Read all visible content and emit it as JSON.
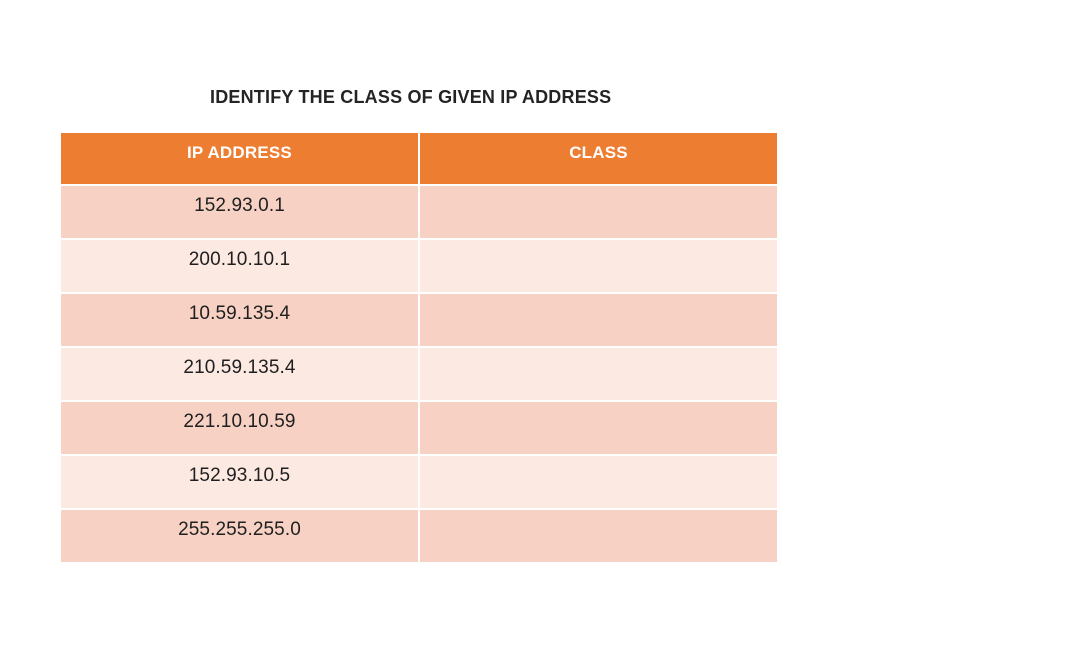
{
  "title": "IDENTIFY THE CLASS OF GIVEN IP ADDRESS",
  "table": {
    "columns": [
      "IP ADDRESS",
      "CLASS"
    ],
    "rows": [
      {
        "ip": "152.93.0.1",
        "class": ""
      },
      {
        "ip": "200.10.10.1",
        "class": ""
      },
      {
        "ip": "10.59.135.4",
        "class": ""
      },
      {
        "ip": "210.59.135.4",
        "class": ""
      },
      {
        "ip": "221.10.10.59",
        "class": ""
      },
      {
        "ip": "152.93.10.5",
        "class": ""
      },
      {
        "ip": "255.255.255.0",
        "class": ""
      }
    ],
    "colors": {
      "header_bg": "#ED7D31",
      "header_text": "#FFFFFF",
      "row_dark": "#F7D2C4",
      "row_light": "#FBE9E2",
      "cell_text": "#1F1F1F",
      "grid_line": "#FFFFFF"
    }
  }
}
